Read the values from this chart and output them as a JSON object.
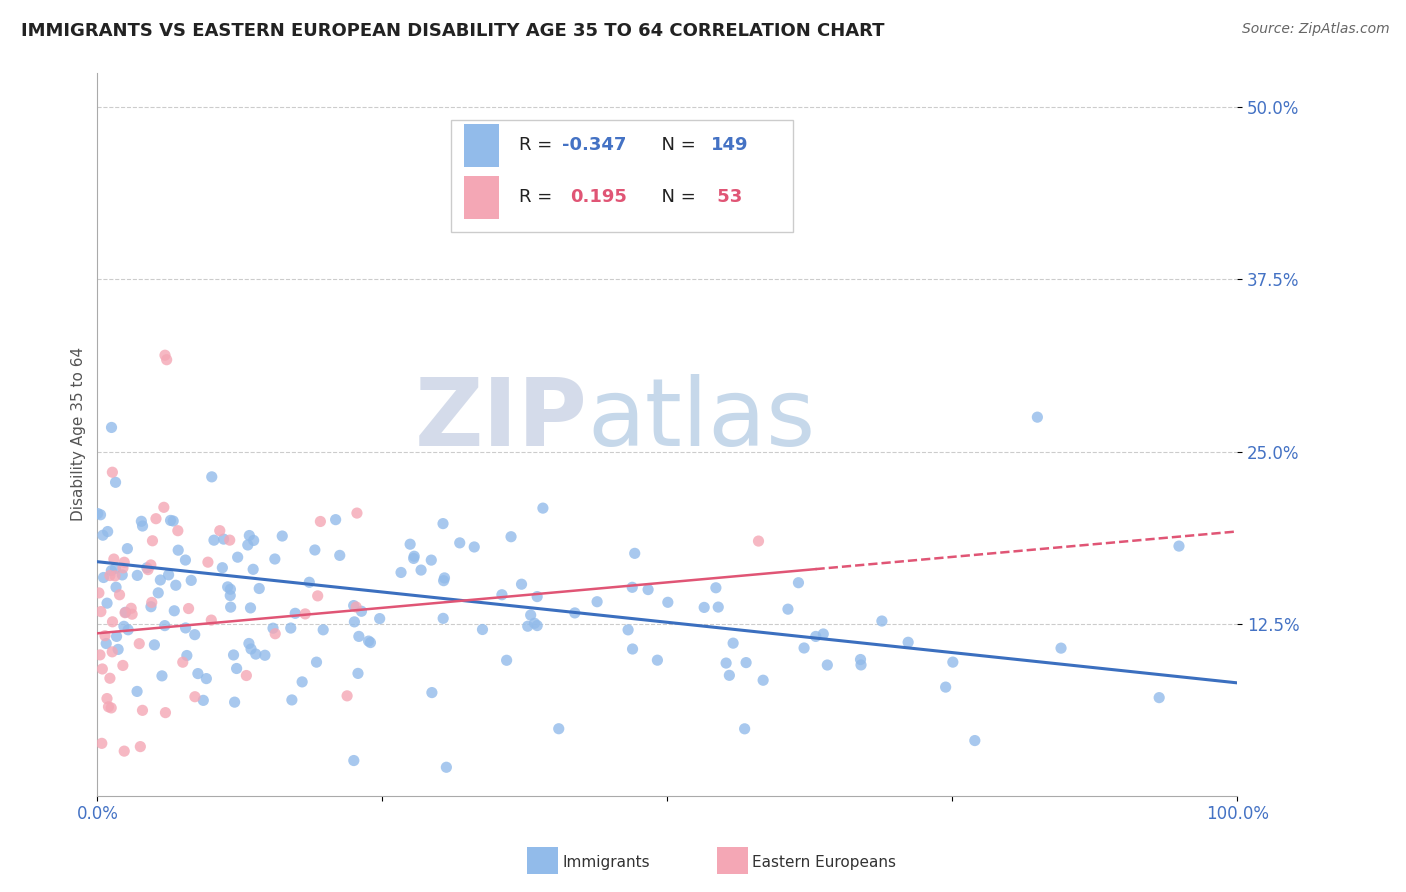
{
  "title": "IMMIGRANTS VS EASTERN EUROPEAN DISABILITY AGE 35 TO 64 CORRELATION CHART",
  "source": "Source: ZipAtlas.com",
  "ylabel": "Disability Age 35 to 64",
  "legend_label_1": "Immigrants",
  "legend_label_2": "Eastern Europeans",
  "r1": -0.347,
  "n1": 149,
  "r2": 0.195,
  "n2": 53,
  "color1": "#92BBEA",
  "color2": "#F4A7B5",
  "line_color1": "#3B6FBF",
  "line_color2": "#E05575",
  "bg_color": "#FFFFFF",
  "watermark_zip": "ZIP",
  "watermark_atlas": "atlas",
  "xlim": [
    0.0,
    1.0
  ],
  "ylim": [
    0.0,
    0.525
  ],
  "blue_line_y0": 0.17,
  "blue_line_y1": 0.082,
  "pink_line_y0": 0.118,
  "pink_line_y1": 0.192,
  "title_fontsize": 13,
  "axis_fontsize": 11,
  "tick_fontsize": 12,
  "source_fontsize": 10,
  "legend_fontsize": 13
}
